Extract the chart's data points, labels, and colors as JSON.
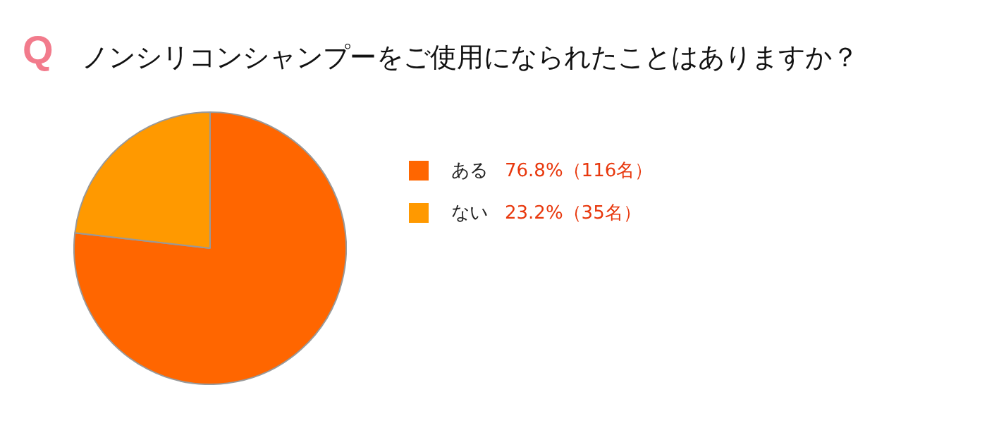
{
  "chart_data": {
    "type": "pie",
    "title": "ノンシリコンシャンプーをご使用になられたことはありますか？",
    "annotations": [
      "Q"
    ],
    "categories": [
      "ある",
      "ない"
    ],
    "values": [
      76.8,
      23.2
    ],
    "colors": [
      "#ff6600",
      "#ff9900"
    ],
    "value_labels": [
      "76.8%（116名）",
      "23.2%（35名）"
    ],
    "legend": "right"
  }
}
